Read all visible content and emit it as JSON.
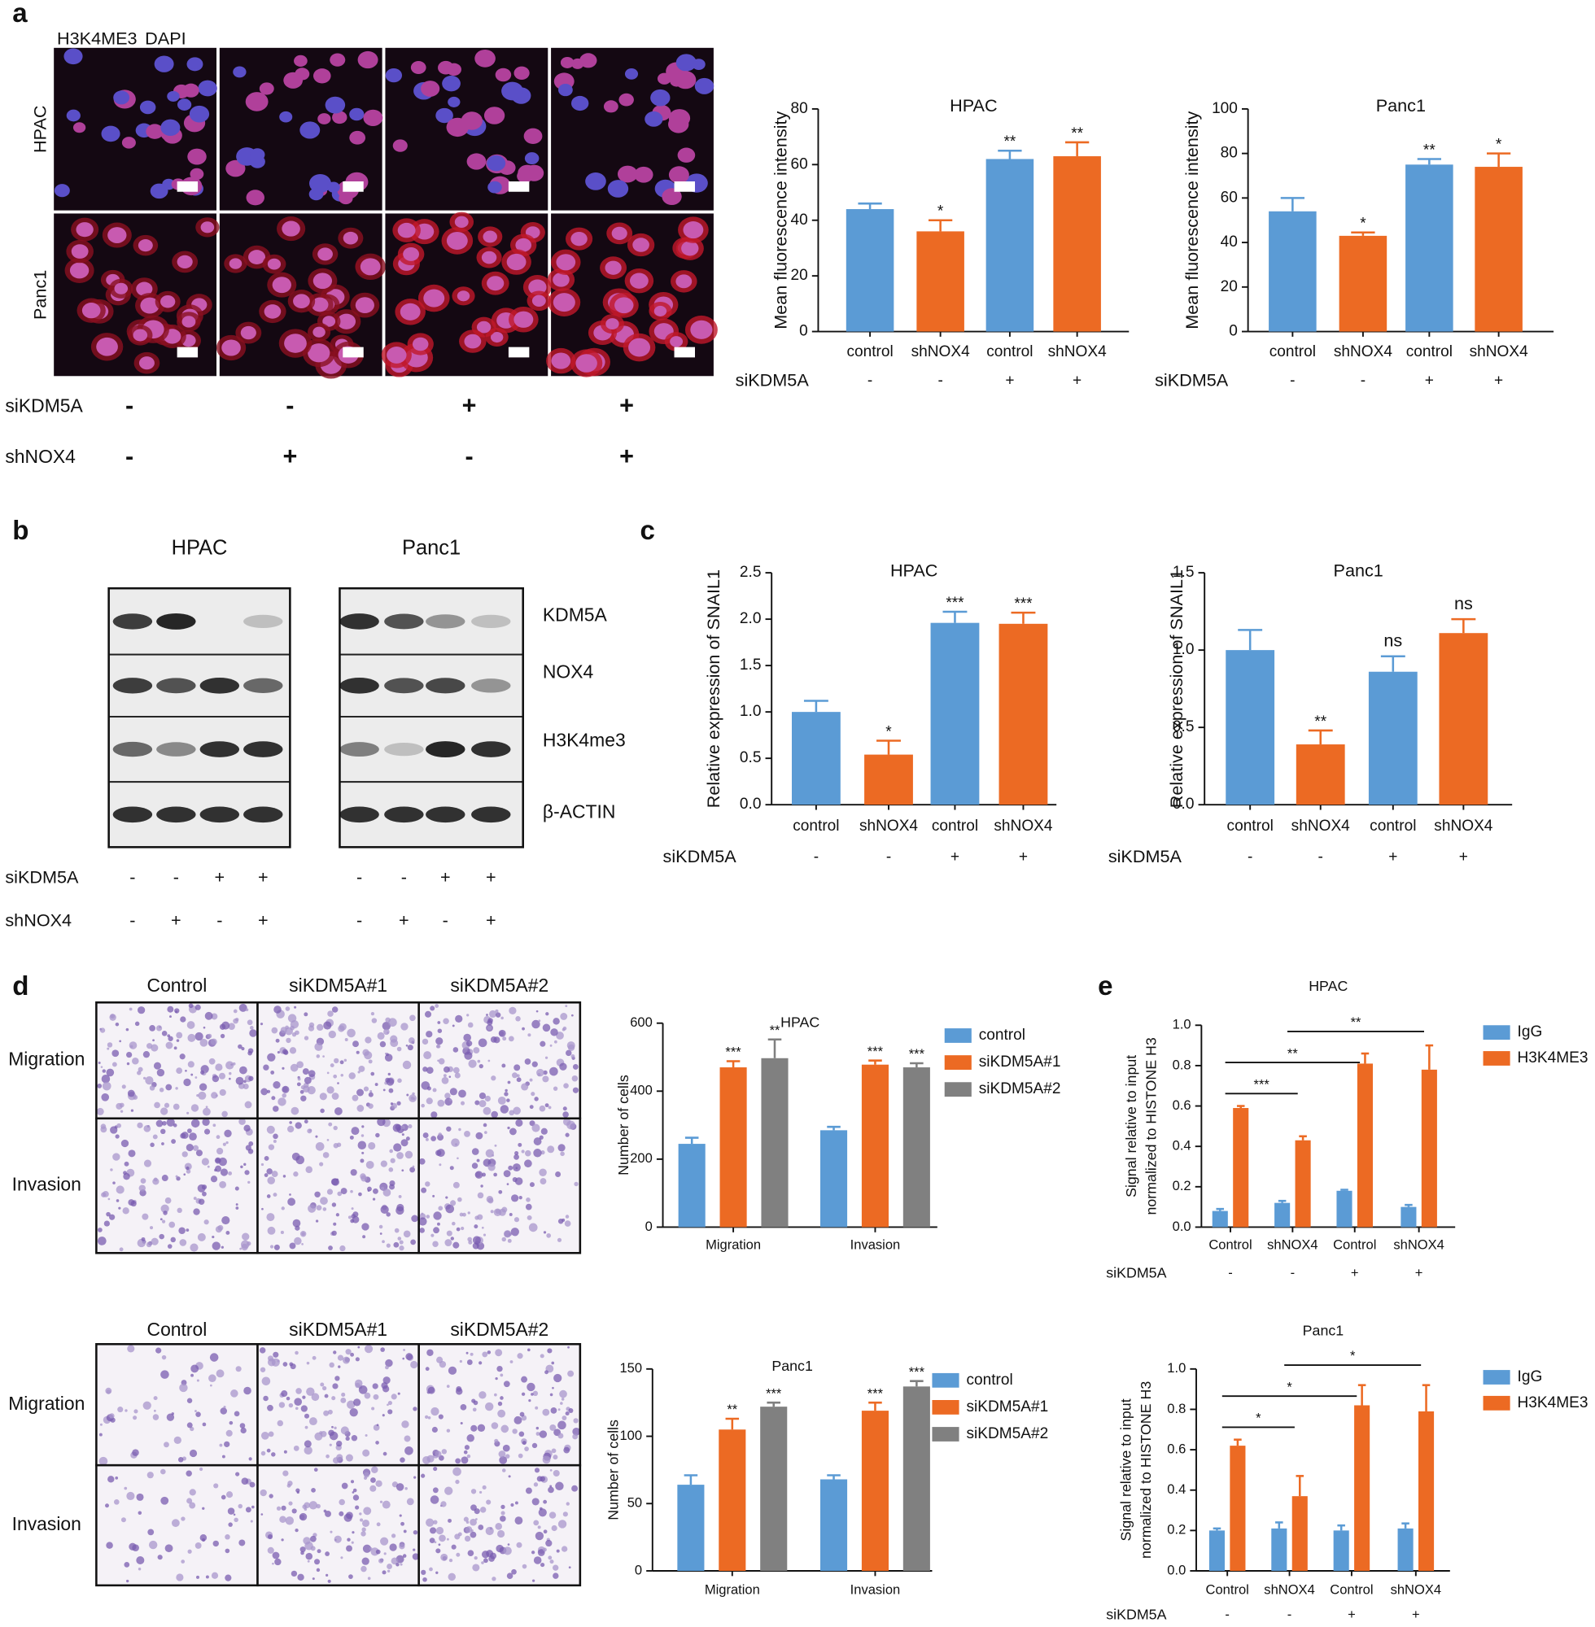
{
  "panels": [
    "a",
    "b",
    "c",
    "d",
    "e"
  ],
  "panel_a": {
    "legend": [
      {
        "text": "H3K4ME3",
        "color": "#e0202a"
      },
      {
        "text": "DAPI",
        "color": "#2a3aa8"
      }
    ],
    "rows": [
      "HPAC",
      "Panc1"
    ],
    "conditions": [
      {
        "label": "siKDM5A",
        "values": [
          "-",
          "-",
          "+",
          "+"
        ]
      },
      {
        "label": "shNOX4",
        "values": [
          "-",
          "+",
          "-",
          "+"
        ]
      }
    ]
  },
  "panel_b": {
    "titles": [
      "HPAC",
      "Panc1"
    ],
    "bands": [
      "KDM5A",
      "NOX4",
      "H3K4me3",
      "β-ACTIN"
    ],
    "conditions": [
      {
        "label": "siKDM5A",
        "values": [
          "-",
          "-",
          "+",
          "+",
          "-",
          "-",
          "+",
          "+"
        ]
      },
      {
        "label": "shNOX4",
        "values": [
          "-",
          "+",
          "-",
          "+",
          "-",
          "+",
          "-",
          "+"
        ]
      }
    ]
  },
  "panel_d": {
    "blocks": [
      {
        "columns": [
          "Control",
          "siKDM5A#1",
          "siKDM5A#2"
        ],
        "rows": [
          "Migration",
          "Invasion"
        ]
      },
      {
        "columns": [
          "Control",
          "siKDM5A#1",
          "siKDM5A#2"
        ],
        "rows": [
          "Migration",
          "Invasion"
        ]
      }
    ]
  },
  "chart_data": [
    {
      "type": "bar",
      "title": "HPAC",
      "y_label": "Mean fluorescence intensity",
      "categories": [
        "control",
        "shNOX4",
        "control",
        "shNOX4"
      ],
      "values": [
        44,
        36,
        62,
        63
      ],
      "errors": [
        2,
        4,
        3,
        5
      ],
      "colors": [
        "#5b9bd5",
        "#ec6a23",
        "#5b9bd5",
        "#ec6a23"
      ],
      "sig": [
        null,
        "*",
        "**",
        "**"
      ],
      "ylim": [
        0,
        80
      ],
      "yticks": [
        0,
        20,
        40,
        60,
        80
      ],
      "condition_label": "siKDM5A",
      "conditions": [
        "-",
        "-",
        "+",
        "+"
      ]
    },
    {
      "type": "bar",
      "title": "Panc1",
      "y_label": "Mean fluorescence intensity",
      "categories": [
        "control",
        "shNOX4",
        "control",
        "shNOX4"
      ],
      "values": [
        54,
        43,
        75,
        74
      ],
      "errors": [
        6,
        1.5,
        2.5,
        6
      ],
      "colors": [
        "#5b9bd5",
        "#ec6a23",
        "#5b9bd5",
        "#ec6a23"
      ],
      "sig": [
        null,
        "*",
        "**",
        "*"
      ],
      "ylim": [
        0,
        100
      ],
      "yticks": [
        0,
        20,
        40,
        60,
        80,
        100
      ],
      "condition_label": "siKDM5A",
      "conditions": [
        "-",
        "-",
        "+",
        "+"
      ]
    },
    {
      "type": "bar",
      "title": "HPAC",
      "y_label": "Relative expression of SNAIL1",
      "categories": [
        "control",
        "shNOX4",
        "control",
        "shNOX4"
      ],
      "values": [
        1.0,
        0.54,
        1.96,
        1.95
      ],
      "errors": [
        0.12,
        0.15,
        0.12,
        0.12
      ],
      "colors": [
        "#5b9bd5",
        "#ec6a23",
        "#5b9bd5",
        "#ec6a23"
      ],
      "sig": [
        null,
        "*",
        "***",
        "***"
      ],
      "ylim": [
        0,
        2.5
      ],
      "yticks": [
        {
          "value": 0,
          "label": "0.0"
        },
        0.5,
        {
          "value": 1,
          "label": "1.0"
        },
        1.5,
        {
          "value": 2,
          "label": "2.0"
        },
        2.5
      ],
      "condition_label": "siKDM5A",
      "conditions": [
        "-",
        "-",
        "+",
        "+"
      ]
    },
    {
      "type": "bar",
      "title": "Panc1",
      "y_label": "Relative expression of SNAIL1",
      "categories": [
        "control",
        "shNOX4",
        "control",
        "shNOX4"
      ],
      "values": [
        1.0,
        0.39,
        0.86,
        1.11
      ],
      "errors": [
        0.13,
        0.09,
        0.1,
        0.09
      ],
      "colors": [
        "#5b9bd5",
        "#ec6a23",
        "#5b9bd5",
        "#ec6a23"
      ],
      "sig": [
        null,
        "**",
        "ns",
        "ns"
      ],
      "ylim": [
        0,
        1.5
      ],
      "yticks": [
        {
          "value": 0,
          "label": "0.0"
        },
        0.5,
        {
          "value": 1,
          "label": "1.0"
        },
        1.5
      ],
      "condition_label": "siKDM5A",
      "conditions": [
        "-",
        "-",
        "+",
        "+"
      ]
    },
    {
      "type": "grouped_bar",
      "title": "HPAC",
      "y_label": "Number of cells",
      "categories": [
        "Migration",
        "Invasion"
      ],
      "series": [
        {
          "name": "control",
          "color": "#5b9bd5",
          "values": [
            245,
            285
          ],
          "errors": [
            18,
            10
          ]
        },
        {
          "name": "siKDM5A#1",
          "color": "#ec6a23",
          "values": [
            470,
            478
          ],
          "errors": [
            18,
            12
          ],
          "sig": [
            "***",
            "***"
          ]
        },
        {
          "name": "siKDM5A#2",
          "color": "#808080",
          "values": [
            497,
            470
          ],
          "errors": [
            55,
            12
          ],
          "sig": [
            "**",
            "***"
          ]
        }
      ],
      "ylim": [
        0,
        600
      ],
      "yticks": [
        0,
        200,
        400,
        600
      ]
    },
    {
      "type": "grouped_bar",
      "title": "Panc1",
      "y_label": "Number of cells",
      "categories": [
        "Migration",
        "Invasion"
      ],
      "series": [
        {
          "name": "control",
          "color": "#5b9bd5",
          "values": [
            64,
            68
          ],
          "errors": [
            7,
            3
          ]
        },
        {
          "name": "siKDM5A#1",
          "color": "#ec6a23",
          "values": [
            105,
            119
          ],
          "errors": [
            8,
            6
          ],
          "sig": [
            "**",
            "***"
          ]
        },
        {
          "name": "siKDM5A#2",
          "color": "#808080",
          "values": [
            122,
            137
          ],
          "errors": [
            3,
            4
          ],
          "sig": [
            "***",
            "***"
          ]
        }
      ],
      "ylim": [
        0,
        150
      ],
      "yticks": [
        0,
        50,
        100,
        150
      ]
    },
    {
      "type": "grouped_bar",
      "title": "HPAC",
      "y_label": [
        "Signal relative to input",
        "normalized to HISTONE H3"
      ],
      "categories": [
        "Control",
        "shNOX4",
        "Control",
        "shNOX4"
      ],
      "series": [
        {
          "name": "IgG",
          "color": "#5b9bd5",
          "values": [
            0.08,
            0.12,
            0.18,
            0.1
          ],
          "errors": [
            0.01,
            0.01,
            0.005,
            0.01
          ]
        },
        {
          "name": "H3K4ME3",
          "color": "#ec6a23",
          "values": [
            0.59,
            0.43,
            0.81,
            0.78
          ],
          "errors": [
            0.01,
            0.02,
            0.05,
            0.12
          ]
        }
      ],
      "brackets": [
        {
          "from": 0,
          "to": 1,
          "text": "***"
        },
        {
          "from": 0,
          "to": 2,
          "text": "**"
        },
        {
          "from": 1,
          "to": 3,
          "text": "**"
        }
      ],
      "ylim": [
        0,
        1.0
      ],
      "yticks": [
        {
          "value": 0,
          "label": "0.0"
        },
        0.2,
        0.4,
        0.6,
        0.8,
        {
          "value": 1,
          "label": "1.0"
        }
      ],
      "condition_label": "siKDM5A",
      "conditions": [
        "-",
        "-",
        "+",
        "+"
      ]
    },
    {
      "type": "grouped_bar",
      "title": "Panc1",
      "y_label": [
        "Signal relative to input",
        "normalized to HISTONE H3"
      ],
      "categories": [
        "Control",
        "shNOX4",
        "Control",
        "shNOX4"
      ],
      "series": [
        {
          "name": "IgG",
          "color": "#5b9bd5",
          "values": [
            0.2,
            0.21,
            0.2,
            0.21
          ],
          "errors": [
            0.01,
            0.03,
            0.025,
            0.025
          ]
        },
        {
          "name": "H3K4ME3",
          "color": "#ec6a23",
          "values": [
            0.62,
            0.37,
            0.82,
            0.79
          ],
          "errors": [
            0.03,
            0.1,
            0.1,
            0.13
          ]
        }
      ],
      "brackets": [
        {
          "from": 0,
          "to": 1,
          "text": "*"
        },
        {
          "from": 0,
          "to": 2,
          "text": "*"
        },
        {
          "from": 1,
          "to": 3,
          "text": "*"
        }
      ],
      "ylim": [
        0,
        1.0
      ],
      "yticks": [
        {
          "value": 0,
          "label": "0.0"
        },
        0.2,
        0.4,
        0.6,
        0.8,
        {
          "value": 1,
          "label": "1.0"
        }
      ],
      "condition_label": "siKDM5A",
      "conditions": [
        "-",
        "-",
        "+",
        "+"
      ]
    }
  ]
}
